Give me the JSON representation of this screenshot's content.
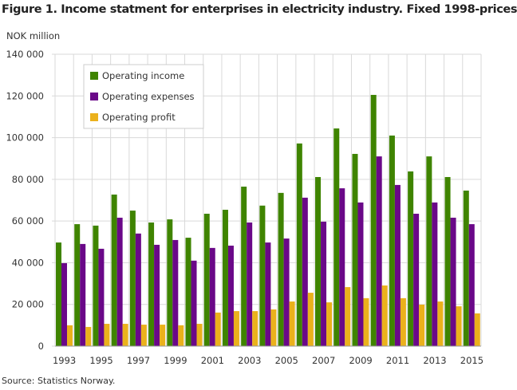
{
  "chart_data": {
    "type": "bar",
    "title": "Figure 1. Income statment for enterprises in electricity industry. Fixed 1998-prices",
    "ylabel": "NOK million",
    "source": "Source: Statistics Norway.",
    "ylim": [
      0,
      140000
    ],
    "yticks": [
      0,
      20000,
      40000,
      60000,
      80000,
      100000,
      120000,
      140000
    ],
    "ytick_labels": [
      "0",
      "20 000",
      "40 000",
      "60 000",
      "80 000",
      "100 000",
      "120 000",
      "140 000"
    ],
    "grid": true,
    "legend_position": "top-left",
    "categories": [
      "1993",
      "1994",
      "1995",
      "1996",
      "1997",
      "1998",
      "1999",
      "2000",
      "2001",
      "2002",
      "2003",
      "2004",
      "2005",
      "2006",
      "2007",
      "2008",
      "2009",
      "2010",
      "2011",
      "2012",
      "2013",
      "2014",
      "2015"
    ],
    "xtick_labels": [
      "1993",
      "1995",
      "1997",
      "1999",
      "2001",
      "2003",
      "2005",
      "2007",
      "2009",
      "2011",
      "2013",
      "2015"
    ],
    "series": [
      {
        "name": "Operating income",
        "color": "#3f8400",
        "values": [
          49700,
          58500,
          57800,
          72700,
          65000,
          59300,
          60800,
          52000,
          63500,
          65400,
          76500,
          67400,
          73500,
          97200,
          81100,
          104400,
          92200,
          120500,
          101000,
          83800,
          91000,
          81100,
          74600
        ]
      },
      {
        "name": "Operating expenses",
        "color": "#6a0888",
        "values": [
          39800,
          49000,
          46700,
          61600,
          54000,
          48600,
          50900,
          41000,
          47100,
          48200,
          59300,
          49700,
          51600,
          71200,
          59700,
          75700,
          68900,
          91000,
          77300,
          63500,
          68900,
          61600,
          58500
        ]
      },
      {
        "name": "Operating profit",
        "color": "#ebb11c",
        "values": [
          10000,
          9200,
          10700,
          10700,
          10300,
          10300,
          10000,
          10700,
          16100,
          16800,
          16800,
          17600,
          21400,
          25600,
          21000,
          28300,
          23000,
          29100,
          23000,
          19900,
          21400,
          19100,
          15700
        ]
      }
    ]
  }
}
